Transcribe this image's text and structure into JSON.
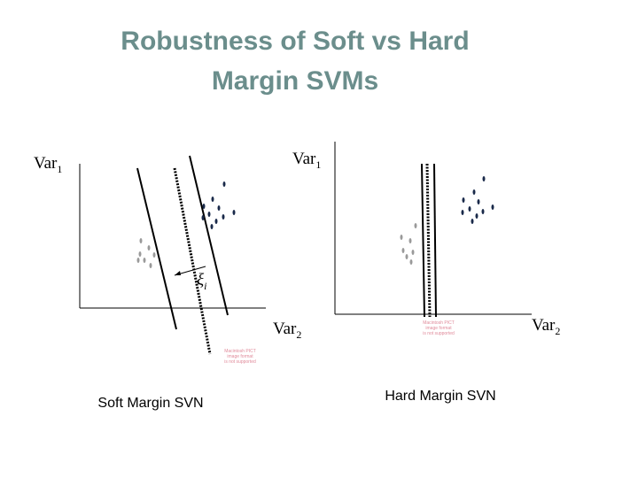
{
  "header": {
    "title_lines": [
      "Robustness of Soft vs Hard",
      "Margin SVMs"
    ]
  },
  "left_panel": {
    "y_axis_label": {
      "text": "Var",
      "sub": "1"
    },
    "x_axis_label": {
      "text": "Var",
      "sub": "2"
    },
    "slack_label": {
      "text": "ξ",
      "sub": "i"
    },
    "caption": "Soft Margin SVN",
    "placeholder_lines": [
      "Macintosh PICT",
      "image format",
      "is not supported"
    ]
  },
  "right_panel": {
    "y_axis_label": {
      "text": "Var",
      "sub": "1"
    },
    "x_axis_label": {
      "text": "Var",
      "sub": "2"
    },
    "caption": "Hard Margin SVN",
    "placeholder_lines": [
      "Macintosh PICT",
      "image format",
      "is not supported"
    ]
  }
}
